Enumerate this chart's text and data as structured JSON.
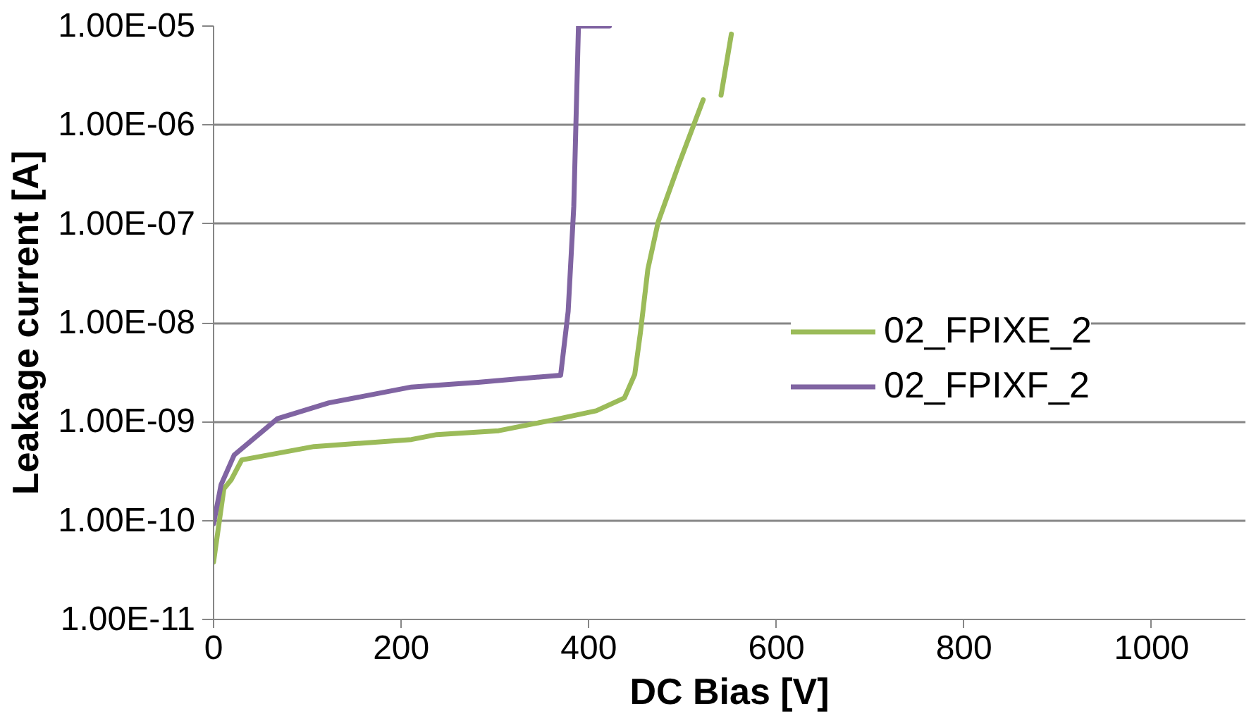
{
  "chart_data": {
    "type": "line",
    "xlabel": "DC Bias [V]",
    "ylabel": "Leakage current [A]",
    "log": "y",
    "grid": "y",
    "legend": "right",
    "marker": "none",
    "line_style": "solid",
    "xlim": [
      0,
      1100
    ],
    "xticks": [
      0,
      200,
      400,
      600,
      800,
      1000
    ],
    "ylim": [
      1e-11,
      1e-05
    ],
    "yticks": [
      {
        "value": 1e-11,
        "label": "1.00E-11"
      },
      {
        "value": 1e-10,
        "label": "1.00E-10"
      },
      {
        "value": 1e-09,
        "label": "1.00E-09"
      },
      {
        "value": 1e-08,
        "label": "1.00E-08"
      },
      {
        "value": 1e-07,
        "label": "1.00E-07"
      },
      {
        "value": 1e-06,
        "label": "1.00E-06"
      },
      {
        "value": 1e-05,
        "label": "1.00E-05"
      }
    ],
    "series": [
      {
        "name": "02_FPIXE_2",
        "color": "#9bbb59",
        "x": [
          0,
          11,
          19,
          30,
          107,
          211,
          238,
          304,
          364,
          408,
          438,
          449,
          455,
          463,
          474,
          496,
          522,
          531,
          541,
          552
        ],
        "values": [
          3.8e-11,
          2.1e-10,
          2.6e-10,
          4.1e-10,
          5.6e-10,
          6.6e-10,
          7.4e-10,
          8.1e-10,
          1.05e-09,
          1.29e-09,
          1.74e-09,
          3e-09,
          7.9e-09,
          3.5e-08,
          1.05e-07,
          4e-07,
          1.8e-06,
          null,
          2e-06,
          8.3e-06
        ]
      },
      {
        "name": "02_FPIXF_2",
        "color": "#8064a2",
        "x": [
          0,
          8,
          22,
          68,
          123,
          211,
          282,
          370,
          378,
          384,
          389,
          400,
          422
        ],
        "values": [
          9.3e-11,
          2.3e-10,
          4.6e-10,
          1.07e-09,
          1.55e-09,
          2.24e-09,
          2.5e-09,
          2.95e-09,
          1.3e-08,
          1.5e-07,
          1e-05,
          1e-05,
          1e-05
        ]
      }
    ]
  }
}
